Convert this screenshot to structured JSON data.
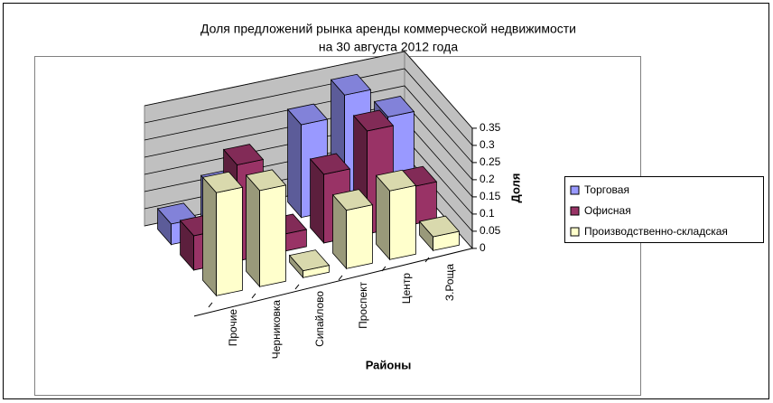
{
  "chart_data": {
    "type": "bar3d",
    "title": "Доля предложений рынка аренды коммерческой недвижимости",
    "subtitle": "на  30 августа 2012 года",
    "x_label": "Районы",
    "y_label": "Доля",
    "categories": [
      "Прочие",
      "Черниковка",
      "Сипайлово",
      "Проспект",
      "Центр",
      "З.Роща"
    ],
    "series": [
      {
        "name": "Торговая",
        "color": "#9999ff",
        "values": [
          0.06,
          0.13,
          0.1,
          0.27,
          0.33,
          0.24
        ]
      },
      {
        "name": "Офисная",
        "color": "#993366",
        "values": [
          0.1,
          0.28,
          0.05,
          0.2,
          0.3,
          0.11
        ]
      },
      {
        "name": "Производственно-складская",
        "color": "#ffffcc",
        "values": [
          0.3,
          0.28,
          0.02,
          0.17,
          0.2,
          0.04
        ]
      }
    ],
    "ylim": [
      0,
      0.35
    ],
    "yticks": [
      0,
      0.05,
      0.1,
      0.15,
      0.2,
      0.25,
      0.3,
      0.35
    ],
    "grid": true,
    "legend": "right"
  }
}
